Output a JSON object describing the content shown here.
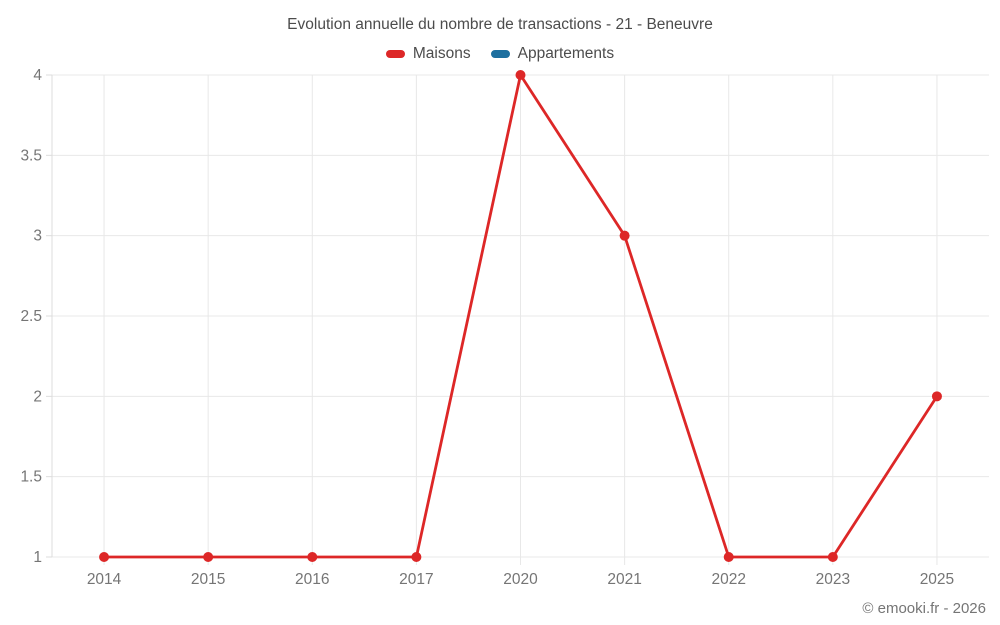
{
  "chart_data": {
    "type": "line",
    "title": "Evolution annuelle du nombre de transactions - 21 - Beneuvre",
    "categories": [
      "2014",
      "2015",
      "2016",
      "2017",
      "2020",
      "2021",
      "2022",
      "2023",
      "2025"
    ],
    "series": [
      {
        "name": "Maisons",
        "color": "#dd2727",
        "values": [
          1,
          1,
          1,
          1,
          4,
          3,
          1,
          1,
          2
        ]
      },
      {
        "name": "Appartements",
        "color": "#1d6f9f",
        "values": []
      }
    ],
    "xlabel": "",
    "ylabel": "",
    "ylim": [
      1,
      4
    ],
    "yticks": [
      1,
      1.5,
      2,
      2.5,
      3,
      3.5,
      4
    ],
    "grid": true,
    "legend_position": "top"
  },
  "footer": {
    "copyright": "© emooki.fr - 2026"
  },
  "style": {
    "background": "#ffffff",
    "grid_color": "#e8e8e8",
    "axis_line_color": "#dcdcdc",
    "tick_label_color": "#757575",
    "title_color": "#4c4c4c",
    "footer_color": "#757575"
  }
}
